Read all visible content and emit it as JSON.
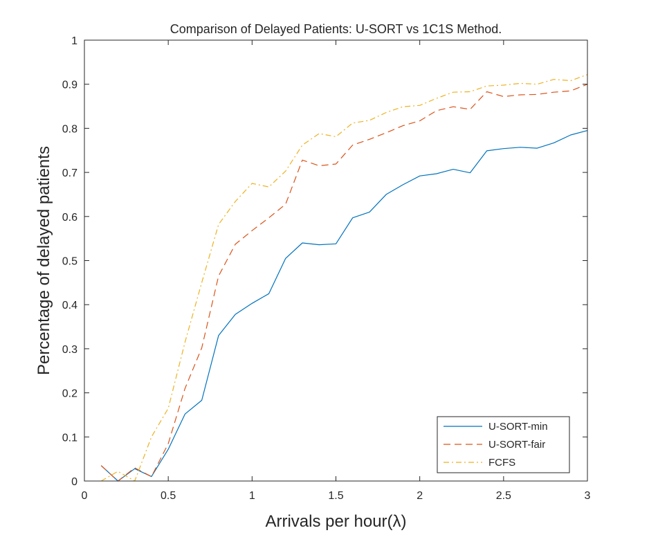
{
  "chart_data": {
    "type": "line",
    "title": "Comparison of Delayed Patients: U-SORT vs 1C1S Method.",
    "xlabel": "Arrivals per hour(λ)",
    "ylabel": "Percentage of delayed patients",
    "xlim": [
      0,
      3
    ],
    "ylim": [
      0,
      1
    ],
    "xticks": [
      "0",
      "0.5",
      "1",
      "1.5",
      "2",
      "2.5",
      "3"
    ],
    "xtick_values": [
      0,
      0.5,
      1,
      1.5,
      2,
      2.5,
      3
    ],
    "yticks": [
      "0",
      "0.1",
      "0.2",
      "0.3",
      "0.4",
      "0.5",
      "0.6",
      "0.7",
      "0.8",
      "0.9",
      "1"
    ],
    "ytick_values": [
      0,
      0.1,
      0.2,
      0.3,
      0.4,
      0.5,
      0.6,
      0.7,
      0.8,
      0.9,
      1
    ],
    "grid": false,
    "legend_position": "bottom-right",
    "x": [
      0.1,
      0.2,
      0.3,
      0.4,
      0.5,
      0.6,
      0.7,
      0.8,
      0.9,
      1.0,
      1.1,
      1.2,
      1.3,
      1.4,
      1.5,
      1.6,
      1.7,
      1.8,
      1.9,
      2.0,
      2.1,
      2.2,
      2.3,
      2.4,
      2.5,
      2.6,
      2.7,
      2.8,
      2.9,
      3.0
    ],
    "series": [
      {
        "name": "U-SORT-min",
        "color": "#0072BD",
        "dash": "solid",
        "values": [
          0.035,
          0.0,
          0.028,
          0.01,
          0.072,
          0.152,
          0.183,
          0.33,
          0.378,
          0.403,
          0.425,
          0.505,
          0.54,
          0.536,
          0.538,
          0.597,
          0.61,
          0.65,
          0.672,
          0.692,
          0.697,
          0.707,
          0.699,
          0.749,
          0.754,
          0.757,
          0.755,
          0.767,
          0.785,
          0.795
        ]
      },
      {
        "name": "U-SORT-fair",
        "color": "#D95319",
        "dash": "dashed",
        "values": [
          0.035,
          0.0,
          0.03,
          0.01,
          0.085,
          0.21,
          0.302,
          0.465,
          0.537,
          0.568,
          0.597,
          0.628,
          0.728,
          0.715,
          0.719,
          0.762,
          0.775,
          0.79,
          0.806,
          0.817,
          0.84,
          0.849,
          0.843,
          0.883,
          0.872,
          0.876,
          0.877,
          0.882,
          0.885,
          0.9
        ]
      },
      {
        "name": "FCFS",
        "color": "#EDB120",
        "dash": "dashdot",
        "values": [
          0.0,
          0.022,
          0.0,
          0.1,
          0.165,
          0.315,
          0.45,
          0.582,
          0.634,
          0.675,
          0.667,
          0.703,
          0.762,
          0.788,
          0.781,
          0.812,
          0.818,
          0.836,
          0.849,
          0.852,
          0.868,
          0.882,
          0.883,
          0.896,
          0.898,
          0.902,
          0.9,
          0.911,
          0.908,
          0.922
        ]
      }
    ]
  }
}
